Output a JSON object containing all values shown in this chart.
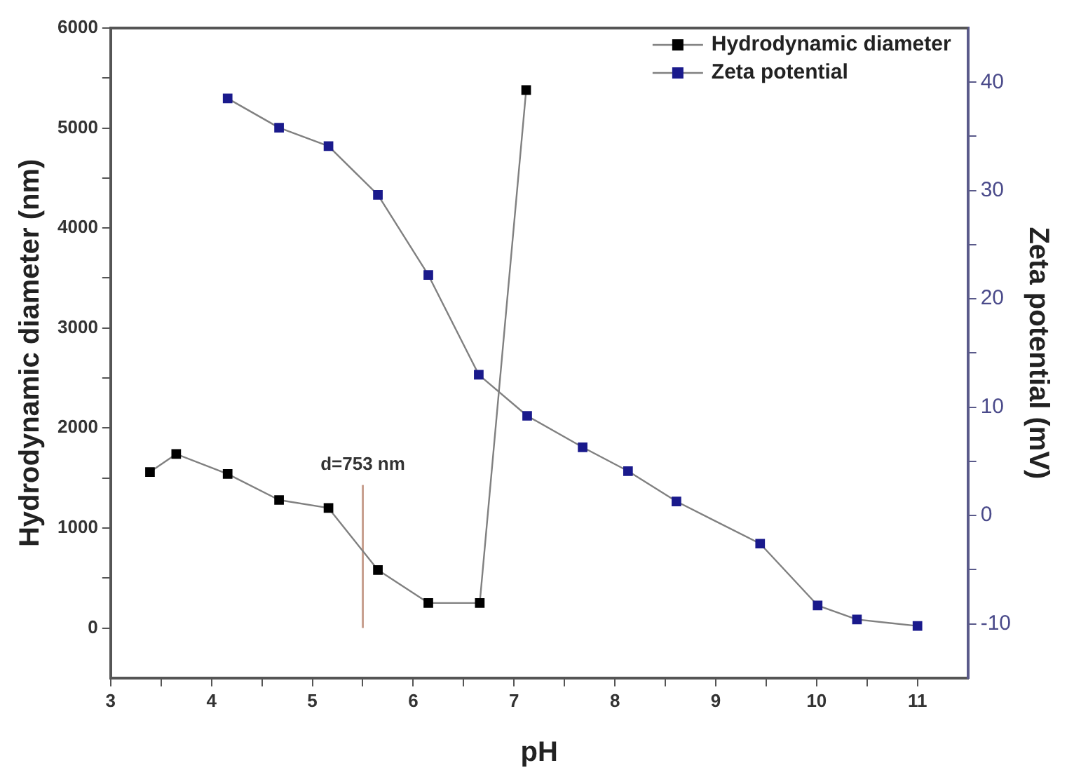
{
  "chart_data": {
    "type": "line",
    "xlabel": "pH",
    "ylabel": "Hydrodynamic diameter (nm)",
    "y2label": "Zeta potential (mV)",
    "xlim": [
      3,
      11.5
    ],
    "xticks": [
      3,
      {
        "value": 3.5,
        "label": null
      },
      4,
      {
        "value": 4.5,
        "label": null
      },
      5,
      {
        "value": 5.5,
        "label": null
      },
      6,
      {
        "value": 6.5,
        "label": null
      },
      7,
      {
        "value": 7.5,
        "label": null
      },
      8,
      {
        "value": 8.5,
        "label": null
      },
      9,
      {
        "value": 9.5,
        "label": null
      },
      10,
      {
        "value": 10.5,
        "label": null
      },
      11
    ],
    "ylim": [
      -500,
      6000
    ],
    "yticks": [
      0,
      {
        "value": 500,
        "label": null
      },
      1000,
      {
        "value": 1500,
        "label": null
      },
      2000,
      {
        "value": 2500,
        "label": null
      },
      3000,
      {
        "value": 3500,
        "label": null
      },
      4000,
      {
        "value": 4500,
        "label": null
      },
      5000,
      {
        "value": 5500,
        "label": null
      },
      6000
    ],
    "y2lim": [
      -15,
      45
    ],
    "y2ticks": [
      -10,
      {
        "value": -5,
        "label": null
      },
      0,
      {
        "value": 5,
        "label": null
      },
      10,
      {
        "value": 15,
        "label": null
      },
      20,
      {
        "value": 25,
        "label": null
      },
      30,
      {
        "value": 35,
        "label": null
      },
      40
    ],
    "series": [
      {
        "name": "Hydrodynamic diameter",
        "color": "#000000",
        "x": [
          3.39,
          3.65,
          4.16,
          4.67,
          5.16,
          5.65,
          6.15,
          6.66,
          7.12
        ],
        "values": [
          1560,
          1740,
          1540,
          1280,
          1200,
          580,
          250,
          250,
          5380
        ]
      },
      {
        "name": "Zeta potential",
        "color": "#1a1a8c",
        "axis": "y2",
        "x": [
          4.16,
          4.67,
          5.16,
          5.65,
          6.15,
          6.65,
          7.13,
          7.68,
          8.13,
          8.61,
          9.44,
          10.01,
          10.4,
          11.0
        ],
        "values": [
          38.5,
          35.8,
          34.1,
          29.6,
          22.2,
          13.0,
          9.2,
          6.3,
          4.1,
          1.3,
          -2.6,
          -8.3,
          -9.6,
          -10.2
        ]
      },
      {
        "type": "line",
        "color": "#c8a090",
        "marker": "none",
        "x": [
          5.5,
          5.5
        ],
        "values": [
          0,
          1430
        ]
      }
    ],
    "annotations": [
      {
        "text": "d=753 nm",
        "x": 5.5,
        "y": 1430
      }
    ],
    "marker": "square",
    "legend": "top right",
    "grid": false
  }
}
